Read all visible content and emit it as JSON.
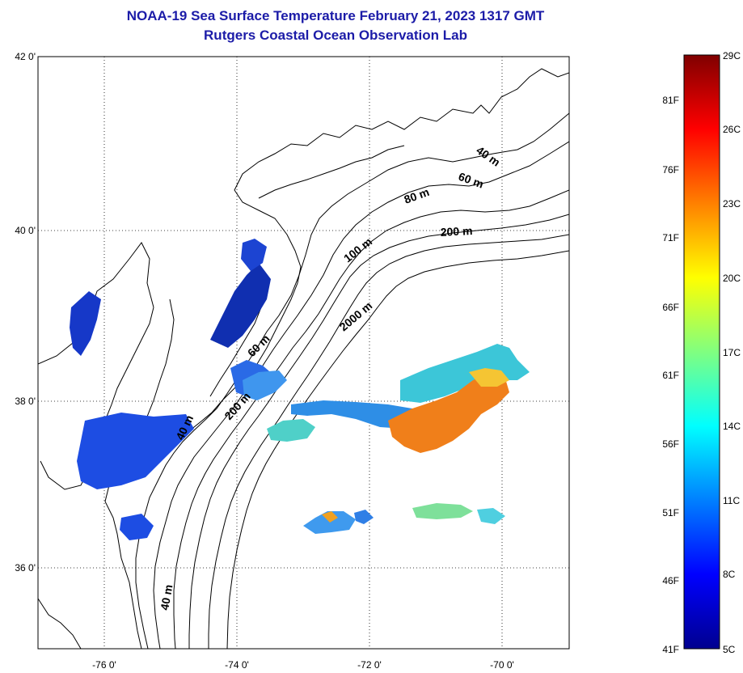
{
  "title": {
    "line1": "NOAA-19 Sea Surface Temperature February 21, 2023 1317 GMT",
    "line2": "Rutgers Coastal Ocean Observation Lab"
  },
  "map": {
    "lat_labels": [
      "42 0'",
      "40 0'",
      "38 0'",
      "36 0'"
    ],
    "lon_labels": [
      "-76 0'",
      "-74 0'",
      "-72 0'",
      "-70 0'"
    ],
    "grid": "dotted",
    "contour_labels": [
      "40 m",
      "60 m",
      "80 m",
      "200 m",
      "100 m",
      "2000 m",
      "60 m",
      "200 m",
      "40 m",
      "40 m"
    ]
  },
  "colorbar": {
    "colors": [
      "#00008f",
      "#0000ff",
      "#0080ff",
      "#00ffff",
      "#80ff80",
      "#ffff00",
      "#ff8000",
      "#ff0000",
      "#800000"
    ],
    "fahrenheit_labels": [
      "81F",
      "76F",
      "71F",
      "66F",
      "61F",
      "56F",
      "51F",
      "46F",
      "41F"
    ],
    "celsius_labels": [
      "29C",
      "26C",
      "23C",
      "20C",
      "17C",
      "14C",
      "11C",
      "8C",
      "5C"
    ]
  }
}
